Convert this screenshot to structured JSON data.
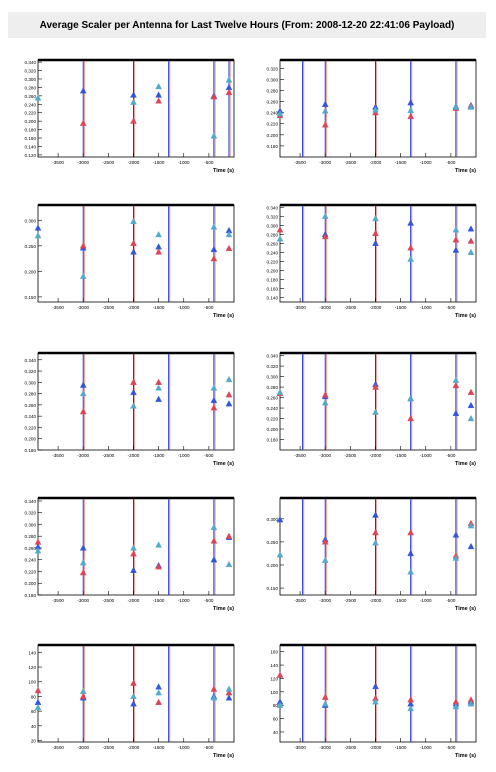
{
  "title": "Average Scaler per Antenna for Last Twelve Hours (From: 2008-12-20 22:41:06 Payload)",
  "colors": {
    "frame": "#000000",
    "vline_blue": "#2233cc",
    "vline_red": "#cc3333",
    "series_blue": "#3355dd",
    "series_red": "#dd4455",
    "series_teal": "#55aacc"
  },
  "chart_data": [
    {
      "type": "scatter",
      "xlabel": "Time (s)",
      "xlim": [
        -3900,
        0
      ],
      "ylim": [
        115,
        345
      ],
      "x_ticks": [
        -3500,
        -3000,
        -2500,
        -2000,
        -1500,
        -1000,
        -500
      ],
      "x_tick_labels": [
        "-3500",
        "-3000",
        "-2500",
        "-2000",
        "-1500",
        "-1000",
        "-500"
      ],
      "y_ticks": [
        120,
        140,
        160,
        180,
        200,
        220,
        240,
        260,
        280,
        300,
        320,
        340
      ],
      "y_tick_labels": [
        "0.120",
        "0.140",
        "0.160",
        "0.180",
        "0.200",
        "0.220",
        "0.240",
        "0.260",
        "0.280",
        "0.300",
        "0.320",
        "0.340"
      ],
      "vlines": [
        -3000,
        -2000,
        -1300,
        -400,
        -100
      ],
      "series": [
        {
          "color": "blue",
          "x": [
            -3000,
            -2000,
            -1500,
            -400,
            -100
          ],
          "y": [
            272,
            262,
            262,
            260,
            280
          ]
        },
        {
          "color": "red",
          "x": [
            -3000,
            -2000,
            -1500,
            -400,
            -100
          ],
          "y": [
            195,
            200,
            248,
            258,
            268
          ]
        },
        {
          "color": "teal",
          "x": [
            -3900,
            -2000,
            -1500,
            -400,
            -100
          ],
          "y": [
            255,
            245,
            282,
            165,
            298
          ]
        }
      ]
    },
    {
      "type": "scatter",
      "xlabel": "Time (s)",
      "xlim": [
        -3900,
        0
      ],
      "ylim": [
        160,
        335
      ],
      "x_ticks": [
        -3500,
        -3000,
        -2500,
        -2000,
        -1500,
        -1000,
        -500
      ],
      "x_tick_labels": [
        "-3500",
        "-3000",
        "-2500",
        "-2000",
        "-1500",
        "-1000",
        "-500"
      ],
      "y_ticks": [
        180,
        200,
        220,
        240,
        260,
        280,
        300,
        320
      ],
      "y_tick_labels": [
        "0.180",
        "0.200",
        "0.220",
        "0.240",
        "0.260",
        "0.280",
        "0.300",
        "0.320"
      ],
      "vlines": [
        -3450,
        -3000,
        -2000,
        -1300,
        -400
      ],
      "series": [
        {
          "color": "blue",
          "x": [
            -3900,
            -3000,
            -2000,
            -1300,
            -400,
            -100
          ],
          "y": [
            243,
            255,
            250,
            258,
            251,
            253
          ]
        },
        {
          "color": "red",
          "x": [
            -3900,
            -3000,
            -2000,
            -1300,
            -400,
            -100
          ],
          "y": [
            235,
            218,
            240,
            233,
            248,
            252
          ]
        },
        {
          "color": "teal",
          "x": [
            -3900,
            -3000,
            -2000,
            -1300,
            -400,
            -100
          ],
          "y": [
            238,
            243,
            245,
            244,
            250,
            250
          ]
        }
      ]
    },
    {
      "type": "scatter",
      "xlabel": "Time (s)",
      "xlim": [
        -3900,
        0
      ],
      "ylim": [
        140,
        330
      ],
      "x_ticks": [
        -3500,
        -3000,
        -2500,
        -2000,
        -1500,
        -1000,
        -500
      ],
      "x_tick_labels": [
        "-3500",
        "-3000",
        "-2500",
        "-2000",
        "-1500",
        "-1000",
        "-500"
      ],
      "y_ticks": [
        150,
        200,
        250,
        300
      ],
      "y_tick_labels": [
        "0.150",
        "0.200",
        "0.250",
        "0.300"
      ],
      "vlines": [
        -3000,
        -2000,
        -1300,
        -400
      ],
      "series": [
        {
          "color": "blue",
          "x": [
            -3900,
            -3000,
            -2000,
            -1500,
            -400,
            -100
          ],
          "y": [
            285,
            246,
            238,
            248,
            243,
            280
          ]
        },
        {
          "color": "red",
          "x": [
            -3000,
            -2000,
            -1500,
            -400,
            -100
          ],
          "y": [
            250,
            255,
            238,
            225,
            245
          ]
        },
        {
          "color": "teal",
          "x": [
            -3900,
            -3000,
            -2000,
            -1500,
            -400,
            -100
          ],
          "y": [
            270,
            190,
            298,
            272,
            287,
            272
          ]
        }
      ]
    },
    {
      "type": "scatter",
      "xlabel": "Time (s)",
      "xlim": [
        -3900,
        0
      ],
      "ylim": [
        130,
        345
      ],
      "x_ticks": [
        -3500,
        -3000,
        -2500,
        -2000,
        -1500,
        -1000,
        -500
      ],
      "x_tick_labels": [
        "-3500",
        "-3000",
        "-2500",
        "-2000",
        "-1500",
        "-1000",
        "-500"
      ],
      "y_ticks": [
        140,
        160,
        180,
        200,
        220,
        240,
        260,
        280,
        300,
        320,
        340
      ],
      "y_tick_labels": [
        "0.140",
        "0.160",
        "0.180",
        "0.200",
        "0.220",
        "0.240",
        "0.260",
        "0.280",
        "0.300",
        "0.320",
        "0.340"
      ],
      "vlines": [
        -3450,
        -3000,
        -2000,
        -1300,
        -400
      ],
      "series": [
        {
          "color": "blue",
          "x": [
            -3000,
            -2000,
            -1300,
            -400,
            -100
          ],
          "y": [
            280,
            260,
            305,
            245,
            292
          ]
        },
        {
          "color": "red",
          "x": [
            -3900,
            -3000,
            -2000,
            -1300,
            -400,
            -100
          ],
          "y": [
            290,
            275,
            282,
            250,
            268,
            265
          ]
        },
        {
          "color": "teal",
          "x": [
            -3900,
            -3000,
            -2000,
            -1300,
            -400,
            -100
          ],
          "y": [
            270,
            320,
            315,
            225,
            290,
            240
          ]
        }
      ]
    },
    {
      "type": "scatter",
      "xlabel": "Time (s)",
      "xlim": [
        -3900,
        0
      ],
      "ylim": [
        180,
        352
      ],
      "x_ticks": [
        -3500,
        -3000,
        -2500,
        -2000,
        -1500,
        -1000,
        -500
      ],
      "x_tick_labels": [
        "-3500",
        "-3000",
        "-2500",
        "-2000",
        "-1500",
        "-1000",
        "-500"
      ],
      "y_ticks": [
        180,
        200,
        220,
        240,
        260,
        280,
        300,
        320,
        340
      ],
      "y_tick_labels": [
        "0.180",
        "0.200",
        "0.220",
        "0.240",
        "0.260",
        "0.280",
        "0.300",
        "0.320",
        "0.340"
      ],
      "vlines": [
        -3000,
        -2000,
        -1300,
        -400
      ],
      "series": [
        {
          "color": "blue",
          "x": [
            -3000,
            -2000,
            -1500,
            -400,
            -100
          ],
          "y": [
            295,
            282,
            270,
            268,
            262
          ]
        },
        {
          "color": "red",
          "x": [
            -3000,
            -2000,
            -1500,
            -400,
            -100
          ],
          "y": [
            248,
            300,
            300,
            255,
            278
          ]
        },
        {
          "color": "teal",
          "x": [
            -3000,
            -2000,
            -1500,
            -400,
            -100
          ],
          "y": [
            280,
            258,
            290,
            290,
            305
          ]
        }
      ]
    },
    {
      "type": "scatter",
      "xlabel": "Time (s)",
      "xlim": [
        -3900,
        0
      ],
      "ylim": [
        160,
        345
      ],
      "x_ticks": [
        -3500,
        -3000,
        -2500,
        -2000,
        -1500,
        -1000,
        -500
      ],
      "x_tick_labels": [
        "-3500",
        "-3000",
        "-2500",
        "-2000",
        "-1500",
        "-1000",
        "-500"
      ],
      "y_ticks": [
        180,
        200,
        220,
        240,
        260,
        280,
        300,
        320,
        340
      ],
      "y_tick_labels": [
        "0.180",
        "0.200",
        "0.220",
        "0.240",
        "0.260",
        "0.280",
        "0.300",
        "0.320",
        "0.340"
      ],
      "vlines": [
        -3450,
        -3000,
        -2000,
        -1300,
        -400
      ],
      "series": [
        {
          "color": "blue",
          "x": [
            -3000,
            -2000,
            -1300,
            -400,
            -100
          ],
          "y": [
            262,
            285,
            258,
            230,
            245
          ]
        },
        {
          "color": "red",
          "x": [
            -3900,
            -3000,
            -2000,
            -1300,
            -400,
            -100
          ],
          "y": [
            268,
            265,
            280,
            220,
            283,
            270
          ]
        },
        {
          "color": "teal",
          "x": [
            -3900,
            -3000,
            -2000,
            -1300,
            -400,
            -100
          ],
          "y": [
            270,
            250,
            232,
            258,
            293,
            220
          ]
        }
      ]
    },
    {
      "type": "scatter",
      "xlabel": "Time (s)",
      "xlim": [
        -3900,
        0
      ],
      "ylim": [
        180,
        345
      ],
      "x_ticks": [
        -3500,
        -3000,
        -2500,
        -2000,
        -1500,
        -1000,
        -500
      ],
      "x_tick_labels": [
        "-3500",
        "-3000",
        "-2500",
        "-2000",
        "-1500",
        "-1000",
        "-500"
      ],
      "y_ticks": [
        180,
        200,
        220,
        240,
        260,
        280,
        300,
        320,
        340
      ],
      "y_tick_labels": [
        "0.180",
        "0.200",
        "0.220",
        "0.240",
        "0.260",
        "0.280",
        "0.300",
        "0.320",
        "0.340"
      ],
      "vlines": [
        -3000,
        -2000,
        -1300,
        -400
      ],
      "series": [
        {
          "color": "blue",
          "x": [
            -3900,
            -3000,
            -2000,
            -1500,
            -400,
            -100
          ],
          "y": [
            262,
            260,
            222,
            230,
            240,
            278
          ]
        },
        {
          "color": "red",
          "x": [
            -3900,
            -3000,
            -2000,
            -1500,
            -400,
            -100
          ],
          "y": [
            270,
            218,
            250,
            228,
            272,
            280
          ]
        },
        {
          "color": "teal",
          "x": [
            -3900,
            -3000,
            -2000,
            -1500,
            -400,
            -100
          ],
          "y": [
            255,
            235,
            260,
            265,
            295,
            232
          ]
        }
      ]
    },
    {
      "type": "scatter",
      "xlabel": "Time (s)",
      "xlim": [
        -3900,
        0
      ],
      "ylim": [
        135,
        345
      ],
      "x_ticks": [
        -3500,
        -3000,
        -2500,
        -2000,
        -1500,
        -1000,
        -500
      ],
      "x_tick_labels": [
        "-3500",
        "-3000",
        "-2500",
        "-2000",
        "-1500",
        "-1000",
        "-500"
      ],
      "y_ticks": [
        150,
        200,
        250,
        300
      ],
      "y_tick_labels": [
        "0.150",
        "0.200",
        "0.250",
        "0.300"
      ],
      "vlines": [
        -3450,
        -3000,
        -2000,
        -1300,
        -400
      ],
      "series": [
        {
          "color": "blue",
          "x": [
            -3900,
            -3000,
            -2000,
            -1300,
            -400,
            -100
          ],
          "y": [
            298,
            255,
            308,
            225,
            265,
            240
          ]
        },
        {
          "color": "red",
          "x": [
            -3000,
            -2000,
            -1300,
            -400,
            -100
          ],
          "y": [
            250,
            270,
            270,
            220,
            290
          ]
        },
        {
          "color": "teal",
          "x": [
            -3900,
            -3000,
            -2000,
            -1300,
            -400,
            -100
          ],
          "y": [
            222,
            210,
            248,
            185,
            215,
            285
          ]
        }
      ]
    },
    {
      "type": "scatter",
      "xlabel": "Time (s)",
      "xlim": [
        -3900,
        0
      ],
      "ylim": [
        18,
        150
      ],
      "x_ticks": [
        -3500,
        -3000,
        -2500,
        -2000,
        -1500,
        -1000,
        -500
      ],
      "x_tick_labels": [
        "-3500",
        "-3000",
        "-2500",
        "-2000",
        "-1500",
        "-1000",
        "-500"
      ],
      "y_ticks": [
        20,
        40,
        60,
        80,
        100,
        120,
        140
      ],
      "y_tick_labels": [
        "20",
        "40",
        "60",
        "80",
        "100",
        "120",
        "140"
      ],
      "vlines": [
        -3000,
        -2000,
        -1300,
        -400
      ],
      "series": [
        {
          "color": "blue",
          "x": [
            -3900,
            -3000,
            -2000,
            -1500,
            -400,
            -100
          ],
          "y": [
            72,
            78,
            70,
            93,
            80,
            78
          ]
        },
        {
          "color": "red",
          "x": [
            -3900,
            -3000,
            -2000,
            -1500,
            -400,
            -100
          ],
          "y": [
            88,
            80,
            98,
            72,
            90,
            85
          ]
        },
        {
          "color": "teal",
          "x": [
            -3900,
            -3000,
            -2000,
            -1500,
            -400,
            -100
          ],
          "y": [
            65,
            87,
            80,
            85,
            78,
            90
          ]
        }
      ]
    },
    {
      "type": "scatter",
      "xlabel": "Time (s)",
      "xlim": [
        -3900,
        0
      ],
      "ylim": [
        25,
        170
      ],
      "x_ticks": [
        -3500,
        -3000,
        -2500,
        -2000,
        -1500,
        -1000,
        -500
      ],
      "x_tick_labels": [
        "-3500",
        "-3000",
        "-2500",
        "-2000",
        "-1500",
        "-1000",
        "-500"
      ],
      "y_ticks": [
        40,
        60,
        80,
        100,
        120,
        140,
        160
      ],
      "y_tick_labels": [
        "40",
        "60",
        "80",
        "100",
        "120",
        "140",
        "160"
      ],
      "vlines": [
        -3450,
        -3000,
        -2000,
        -1300,
        -400
      ],
      "series": [
        {
          "color": "blue",
          "x": [
            -3900,
            -3000,
            -2000,
            -1300,
            -400,
            -100
          ],
          "y": [
            85,
            80,
            108,
            82,
            82,
            85
          ]
        },
        {
          "color": "red",
          "x": [
            -3900,
            -3000,
            -2000,
            -1300,
            -400,
            -100
          ],
          "y": [
            125,
            92,
            90,
            88,
            85,
            88
          ]
        },
        {
          "color": "teal",
          "x": [
            -3900,
            -3000,
            -2000,
            -1300,
            -400,
            -100
          ],
          "y": [
            80,
            82,
            85,
            75,
            78,
            82
          ]
        }
      ]
    }
  ]
}
